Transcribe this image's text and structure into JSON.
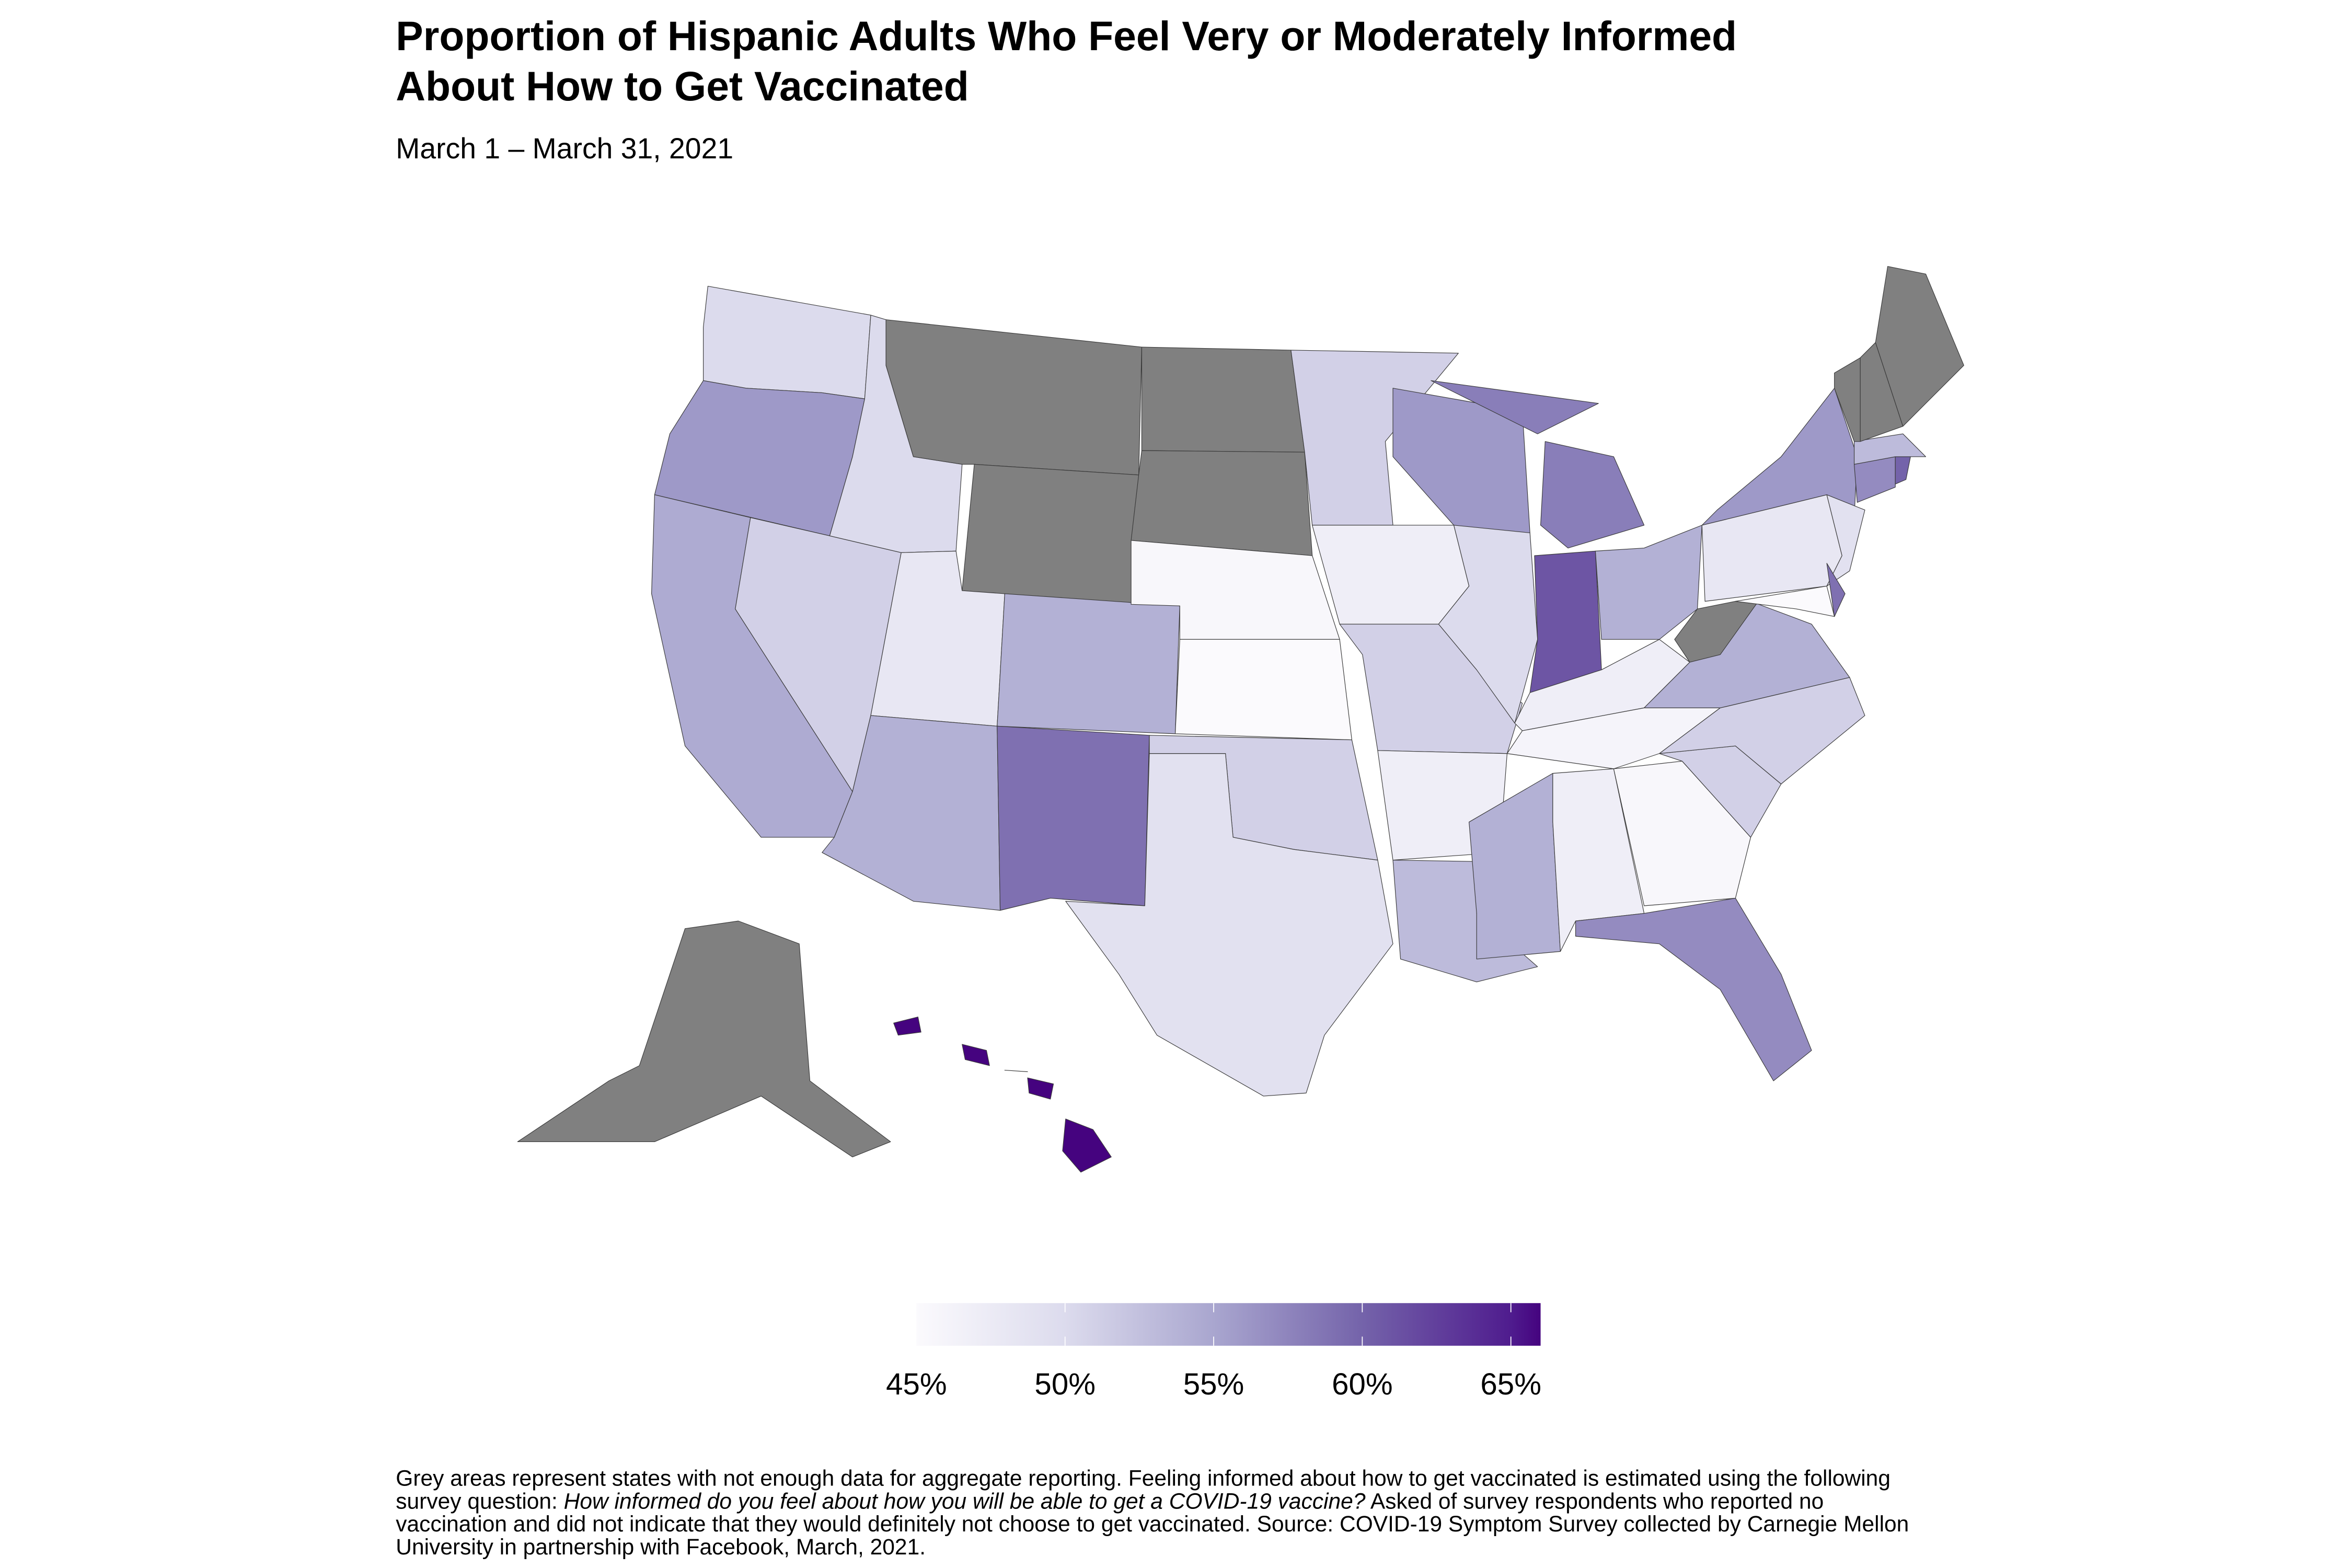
{
  "title_line1": "Proportion of Hispanic Adults Who Feel Very or Moderately Informed",
  "title_line2": "About How to Get Vaccinated",
  "subtitle": "March 1 – March 31, 2021",
  "legend": {
    "ticks": [
      "45%",
      "50%",
      "55%",
      "60%",
      "65%"
    ],
    "tick_values": [
      45,
      50,
      55,
      60,
      65
    ],
    "range": [
      45,
      66
    ],
    "low_color": "#fbfafd",
    "high_color": "#45037f"
  },
  "no_data_color": "#808080",
  "footnote": {
    "line1": "Grey areas represent states with not enough data for aggregate reporting. Feeling informed about how to get vaccinated is estimated using the following",
    "line2_a": "survey question: ",
    "line2_italic": "How informed do you feel about how you will be able to get a COVID-19 vaccine?",
    "line2_b": " Asked of survey respondents who reported no",
    "line3": "vaccination and did not indicate that they would definitely not choose to get vaccinated. Source: COVID-19 Symptom Survey collected by Carnegie Mellon",
    "line4": "University in partnership with Facebook, March, 2021."
  },
  "chart_data": {
    "type": "choropleth",
    "unit": "%",
    "scale": "Purples",
    "range": [
      45,
      66
    ],
    "states": [
      {
        "state": "WA",
        "value": 50
      },
      {
        "state": "OR",
        "value": 56
      },
      {
        "state": "CA",
        "value": 54.5
      },
      {
        "state": "NV",
        "value": 51
      },
      {
        "state": "ID",
        "value": 50
      },
      {
        "state": "MT",
        "value": null
      },
      {
        "state": "WY",
        "value": null
      },
      {
        "state": "UT",
        "value": 48
      },
      {
        "state": "CO",
        "value": 54
      },
      {
        "state": "AZ",
        "value": 54
      },
      {
        "state": "NM",
        "value": 59
      },
      {
        "state": "ND",
        "value": null
      },
      {
        "state": "SD",
        "value": null
      },
      {
        "state": "NE",
        "value": 45.5
      },
      {
        "state": "KS",
        "value": 45
      },
      {
        "state": "OK",
        "value": 51
      },
      {
        "state": "TX",
        "value": 49
      },
      {
        "state": "MN",
        "value": 51
      },
      {
        "state": "IA",
        "value": 47
      },
      {
        "state": "MO",
        "value": 51
      },
      {
        "state": "AR",
        "value": 47
      },
      {
        "state": "LA",
        "value": 53
      },
      {
        "state": "WI",
        "value": 56
      },
      {
        "state": "IL",
        "value": 50
      },
      {
        "state": "MI",
        "value": 58
      },
      {
        "state": "IN",
        "value": 61
      },
      {
        "state": "OH",
        "value": 54
      },
      {
        "state": "KY",
        "value": 47
      },
      {
        "state": "TN",
        "value": 46
      },
      {
        "state": "MS",
        "value": 54
      },
      {
        "state": "AL",
        "value": 47
      },
      {
        "state": "GA",
        "value": 45.5
      },
      {
        "state": "FL",
        "value": 57
      },
      {
        "state": "SC",
        "value": 51
      },
      {
        "state": "NC",
        "value": 51
      },
      {
        "state": "VA",
        "value": 54
      },
      {
        "state": "WV",
        "value": null
      },
      {
        "state": "PA",
        "value": 48
      },
      {
        "state": "NY",
        "value": 56
      },
      {
        "state": "NJ",
        "value": 49
      },
      {
        "state": "MD",
        "value": 45
      },
      {
        "state": "DE",
        "value": 59
      },
      {
        "state": "CT",
        "value": 57
      },
      {
        "state": "RI",
        "value": 60
      },
      {
        "state": "MA",
        "value": 53
      },
      {
        "state": "VT",
        "value": null
      },
      {
        "state": "NH",
        "value": null
      },
      {
        "state": "ME",
        "value": null
      },
      {
        "state": "AK",
        "value": null
      },
      {
        "state": "HI",
        "value": 66
      }
    ]
  }
}
